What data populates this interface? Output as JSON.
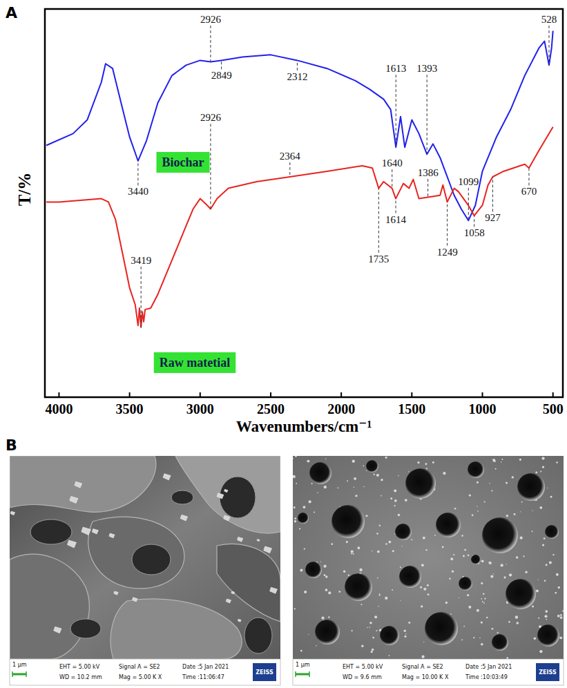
{
  "panel_labels": [
    "A",
    "B"
  ],
  "chart_data": {
    "type": "line",
    "x_label": "Wavenumbers/cm⁻¹",
    "y_label": "T/%",
    "xlim": [
      4100,
      430
    ],
    "xticks": [
      4000,
      3500,
      3000,
      2500,
      2000,
      1500,
      1000,
      500
    ],
    "ylim": [
      0,
      105
    ],
    "tick_labels": "x",
    "series": [
      {
        "name": "Biochar",
        "color": "#2020ee",
        "x": [
          4090,
          3900,
          3800,
          3700,
          3670,
          3620,
          3560,
          3500,
          3440,
          3380,
          3300,
          3200,
          3100,
          3000,
          2926,
          2849,
          2700,
          2500,
          2312,
          2100,
          1900,
          1800,
          1700,
          1650,
          1613,
          1580,
          1550,
          1500,
          1450,
          1393,
          1350,
          1300,
          1200,
          1150,
          1099,
          1050,
          1000,
          900,
          800,
          700,
          600,
          560,
          528,
          510,
          500
        ],
        "values": [
          68.1,
          71.3,
          75.0,
          85.2,
          90.2,
          88.9,
          79.6,
          70.4,
          63.9,
          69.4,
          79.6,
          87.0,
          89.8,
          91.1,
          90.7,
          91.1,
          92.0,
          92.6,
          91.1,
          88.9,
          85.6,
          83.3,
          80.6,
          77.8,
          67.6,
          75.9,
          67.6,
          75.0,
          71.3,
          65.7,
          68.5,
          64.8,
          54.6,
          50.9,
          47.8,
          51.9,
          61.1,
          70.4,
          77.8,
          87.0,
          94.4,
          96.3,
          89.8,
          94.4,
          99.1
        ],
        "annotations": [
          {
            "text": "2926",
            "x": 2926,
            "y": 102.2
          },
          {
            "text": "2849",
            "x": 2849,
            "y": 87.0
          },
          {
            "text": "2312",
            "x": 2312,
            "y": 86.7
          },
          {
            "text": "1613",
            "x": 1613,
            "y": 88.9
          },
          {
            "text": "1393",
            "x": 1393,
            "y": 88.9
          },
          {
            "text": "528",
            "x": 528,
            "y": 102.2
          },
          {
            "text": "3440",
            "x": 3440,
            "y": 55.6
          },
          {
            "text": "1099",
            "x": 1099,
            "y": 58.3
          }
        ]
      },
      {
        "name": "Raw matetial",
        "color": "#e8231f",
        "x": [
          4090,
          4000,
          3700,
          3650,
          3600,
          3550,
          3500,
          3460,
          3440,
          3430,
          3419,
          3410,
          3400,
          3390,
          3350,
          3300,
          3200,
          3100,
          3050,
          3000,
          2950,
          2926,
          2880,
          2800,
          2600,
          2364,
          2100,
          1850,
          1780,
          1735,
          1700,
          1640,
          1614,
          1560,
          1520,
          1490,
          1450,
          1386,
          1300,
          1280,
          1249,
          1200,
          1170,
          1100,
          1058,
          1000,
          960,
          927,
          850,
          700,
          670,
          600,
          500
        ],
        "values": [
          52.8,
          52.8,
          53.7,
          52.8,
          48.1,
          38.9,
          29.6,
          25.0,
          19.4,
          24.1,
          18.9,
          23.1,
          20.4,
          23.7,
          24.1,
          27.8,
          37.0,
          46.3,
          50.9,
          53.7,
          51.9,
          50.9,
          53.7,
          56.5,
          58.3,
          59.6,
          61.1,
          62.6,
          62.0,
          56.5,
          58.3,
          56.5,
          53.7,
          57.8,
          56.5,
          58.9,
          53.7,
          54.1,
          54.6,
          57.4,
          52.8,
          56.5,
          55.6,
          51.9,
          49.1,
          51.9,
          57.4,
          59.6,
          61.1,
          63.0,
          62.0,
          66.7,
          73.1
        ],
        "annotations": [
          {
            "text": "2364",
            "x": 2364,
            "y": 65.2
          },
          {
            "text": "1640",
            "x": 1640,
            "y": 63.3
          },
          {
            "text": "3419",
            "x": 3419,
            "y": 37.0
          },
          {
            "text": "2926",
            "x": 2926,
            "y": 75.6
          },
          {
            "text": "1386",
            "x": 1386,
            "y": 60.7
          },
          {
            "text": "1614",
            "x": 1614,
            "y": 48.1
          },
          {
            "text": "1735",
            "x": 1735,
            "y": 37.4
          },
          {
            "text": "1249",
            "x": 1249,
            "y": 39.3
          },
          {
            "text": "1058",
            "x": 1058,
            "y": 44.4
          },
          {
            "text": "927",
            "x": 927,
            "y": 48.5
          },
          {
            "text": "670",
            "x": 670,
            "y": 55.6
          }
        ]
      }
    ]
  },
  "sem_images": [
    {
      "scale_bar": "1 μm",
      "eht": "EHT = 5.00 kV",
      "wd": "WD = 10.2 mm",
      "signal": "Signal A = SE2",
      "mag": "Mag =  5.00 K X",
      "date": "Date :5 Jan 2021",
      "time": "Time :11:06:47",
      "logo": "ZEISS"
    },
    {
      "scale_bar": "1 μm",
      "eht": "EHT = 5.00 kV",
      "wd": "WD = 9.6 mm",
      "signal": "Signal A = SE2",
      "mag": "Mag = 10.00 K X",
      "date": "Date :5 Jan 2021",
      "time": "Time :10:03:49",
      "logo": "ZEISS"
    }
  ]
}
